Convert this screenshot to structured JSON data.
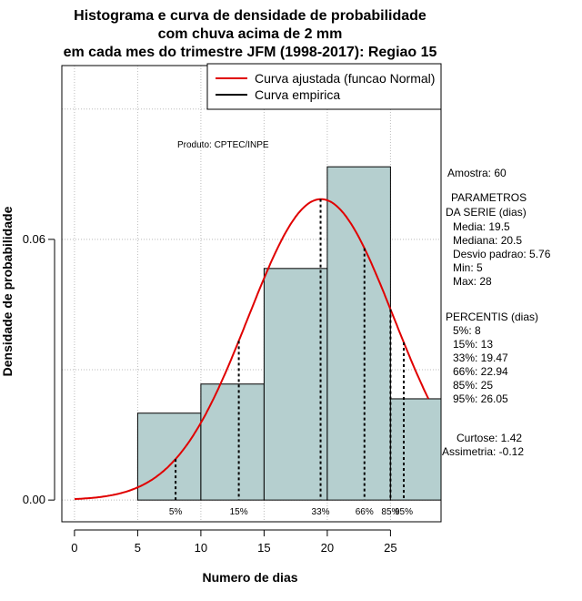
{
  "chart_data": {
    "type": "bar",
    "title_lines": [
      "Histograma e curva de densidade de probabilidade",
      "com chuva acima de 2 mm",
      "em cada mes do trimestre JFM (1998-2017): Regiao 15"
    ],
    "xlabel": "Numero de dias",
    "ylabel": "Densidade de probabilidade",
    "xlim": [
      -1,
      29
    ],
    "ylim": [
      -0.005,
      0.1
    ],
    "x_ticks": [
      0,
      5,
      10,
      15,
      20,
      25
    ],
    "y_ticks": [
      0.0,
      0.06
    ],
    "y_tick_labels": [
      "0.00",
      "0.06"
    ],
    "grid": true,
    "bins": [
      {
        "from": 5,
        "to": 10,
        "density": 0.02
      },
      {
        "from": 10,
        "to": 15,
        "density": 0.0267
      },
      {
        "from": 15,
        "to": 20,
        "density": 0.0533
      },
      {
        "from": 20,
        "to": 25,
        "density": 0.0767
      },
      {
        "from": 25,
        "to": 30,
        "density": 0.0233
      }
    ],
    "normal_fit": {
      "mean": 19.5,
      "sd": 5.76,
      "x_from": 0,
      "x_to": 28
    },
    "percentiles": [
      {
        "label": "5%",
        "value": 8
      },
      {
        "label": "15%",
        "value": 13
      },
      {
        "label": "33%",
        "value": 19.47
      },
      {
        "label": "66%",
        "value": 22.94
      },
      {
        "label": "85%",
        "value": 25
      },
      {
        "label": "95%",
        "value": 26.05
      }
    ],
    "legend": {
      "position": "top-right",
      "entries": [
        {
          "label": "Curva ajustada (funcao Normal)",
          "color": "#e00000"
        },
        {
          "label": "Curva empirica",
          "color": "#000000"
        }
      ]
    },
    "annotation": "Produto: CPTEC/INPE",
    "colors": {
      "bar_fill": "#b5cfcf",
      "curve": "#e00000",
      "grid": "#bbbbbb"
    }
  },
  "stats_panel": {
    "sample": "Amostra: 60",
    "params_header": [
      "PARAMETROS",
      "DA SERIE (dias)"
    ],
    "params": [
      "Media: 19.5",
      "Mediana: 20.5",
      "Desvio padrao: 5.76",
      "Min: 5",
      "Max: 28"
    ],
    "percentis_header": "PERCENTIS (dias)",
    "percentis": [
      "5%: 8",
      "15%: 13",
      "33%: 19.47",
      "66%: 22.94",
      "85%: 25",
      "95%: 26.05"
    ],
    "shape": [
      "Curtose: 1.42",
      "Assimetria: -0.12"
    ]
  }
}
